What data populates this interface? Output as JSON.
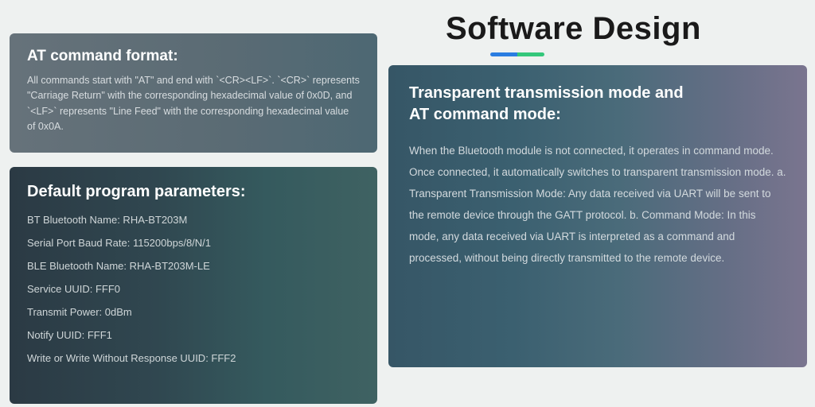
{
  "page": {
    "title": "Software Design",
    "underline_colors": [
      "#2a7de1",
      "#34c77b"
    ],
    "background": "#eef1f0"
  },
  "at_card": {
    "heading": "AT command format:",
    "body": "All commands start with \"AT\" and end with `<CR><LF>`. `<CR>` represents \"Carriage Return\" with the corresponding hexadecimal value of 0x0D, and `<LF>` represents \"Line Feed\" with the corresponding hexadecimal value of 0x0A.",
    "bg_gradient": [
      "#66727a",
      "#4d6873"
    ],
    "text_color": "#d8dde0",
    "heading_color": "#ffffff",
    "heading_fontsize": 19,
    "body_fontsize": 12.5
  },
  "default_card": {
    "heading": "Default program parameters:",
    "params": [
      "BT Bluetooth Name: RHA-BT203M",
      "Serial Port Baud Rate: 115200bps/8/N/1",
      "BLE Bluetooth Name: RHA-BT203M-LE",
      "Service UUID: FFF0",
      "Transmit Power: 0dBm",
      "Notify UUID: FFF1",
      "Write or Write Without Response UUID: FFF2"
    ],
    "bg_gradient": [
      "#2b3a44",
      "#3f6262"
    ],
    "text_color": "#cfd6d8",
    "heading_color": "#ffffff",
    "heading_fontsize": 20,
    "item_fontsize": 13
  },
  "trans_card": {
    "heading_line1": "Transparent transmission mode and",
    "heading_line2": "AT command mode:",
    "body": "When the Bluetooth module is not connected, it operates in command mode. Once connected, it automatically switches to transparent transmission mode.\na. Transparent Transmission Mode: Any data received via UART will be sent to the remote device through the GATT protocol.\nb. Command Mode: In this mode, any data received via UART is interpreted as a command and processed, without being directly transmitted to the remote device.",
    "bg_gradient": [
      "#365666",
      "#7a758f"
    ],
    "text_color": "#d3dade",
    "heading_color": "#ffffff",
    "heading_fontsize": 20,
    "body_fontsize": 13.5
  }
}
